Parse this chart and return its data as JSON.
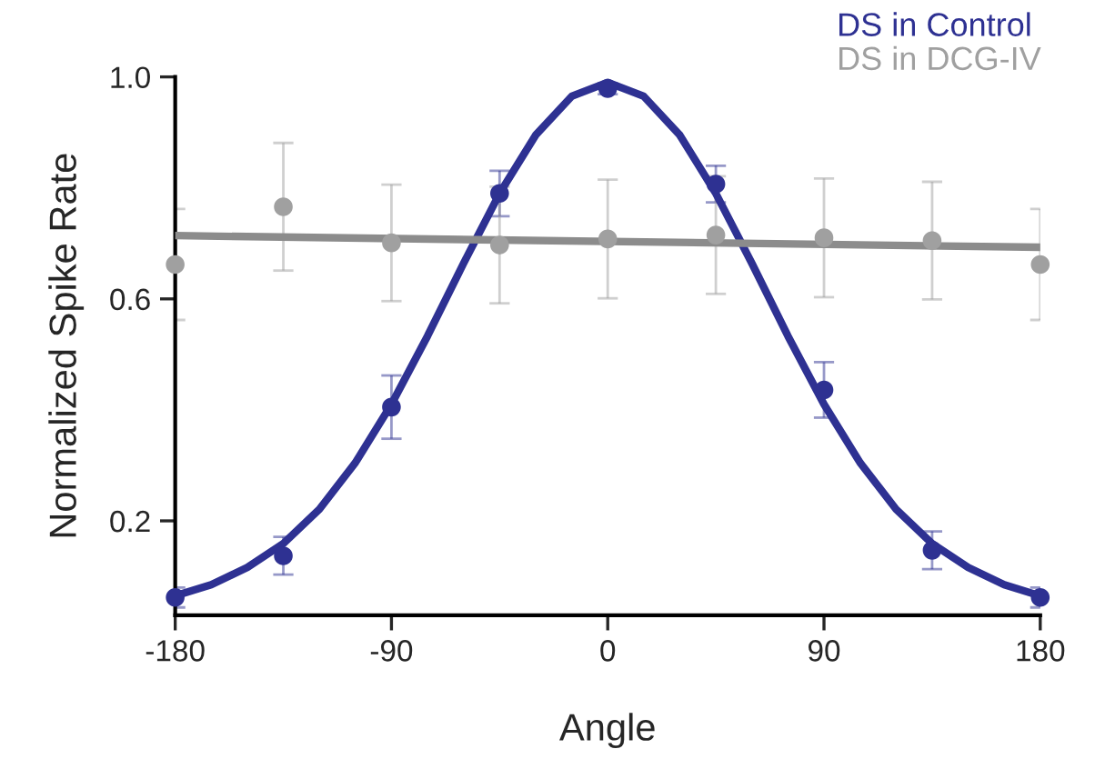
{
  "chart_data": {
    "type": "scatter",
    "xlabel": "Angle",
    "ylabel": "Normalized Spike Rate",
    "xlim": [
      -180,
      180
    ],
    "ylim": [
      0.03,
      1.0
    ],
    "xticks": [
      -180,
      -90,
      0,
      90,
      180
    ],
    "yticks": [
      0.2,
      0.6,
      {
        "value": 1.0,
        "label": "1.0"
      }
    ],
    "grid": false,
    "legend": "top right",
    "marker": "circle",
    "series": [
      {
        "name": "DS in Control",
        "color": "#2e3192",
        "x": [
          -180,
          -135,
          -90,
          -45,
          0,
          45,
          90,
          135,
          180
        ],
        "values": [
          0.062,
          0.137,
          0.405,
          0.79,
          0.979,
          0.807,
          0.436,
          0.147,
          0.062
        ],
        "errors": [
          0.018,
          0.034,
          0.057,
          0.041,
          0.01,
          0.033,
          0.05,
          0.034,
          0.018
        ]
      },
      {
        "name": "DS in DCG-IV",
        "color": "#a0a0a0",
        "x": [
          -180,
          -135,
          -90,
          -45,
          0,
          45,
          90,
          135,
          180
        ],
        "values": [
          0.662,
          0.766,
          0.701,
          0.697,
          0.708,
          0.715,
          0.71,
          0.705,
          0.662
        ],
        "errors": [
          0.1,
          0.115,
          0.105,
          0.105,
          0.107,
          0.106,
          0.107,
          0.106,
          0.1
        ]
      },
      {
        "type": "line",
        "color": "#2e3192",
        "marker": "none",
        "x": [
          -180,
          -165,
          -150,
          -135,
          -120,
          -105,
          -90,
          -75,
          -60,
          -45,
          -30,
          -15,
          0,
          15,
          30,
          45,
          60,
          75,
          90,
          105,
          120,
          135,
          150,
          165,
          180
        ],
        "values": [
          0.065,
          0.085,
          0.116,
          0.159,
          0.221,
          0.305,
          0.41,
          0.533,
          0.664,
          0.79,
          0.895,
          0.965,
          0.99,
          0.965,
          0.895,
          0.79,
          0.664,
          0.533,
          0.41,
          0.305,
          0.221,
          0.159,
          0.116,
          0.085,
          0.065
        ]
      },
      {
        "type": "line",
        "color": "#8c8c8c",
        "marker": "none",
        "x": [
          -180,
          180
        ],
        "values": [
          0.714,
          0.693
        ]
      }
    ]
  }
}
